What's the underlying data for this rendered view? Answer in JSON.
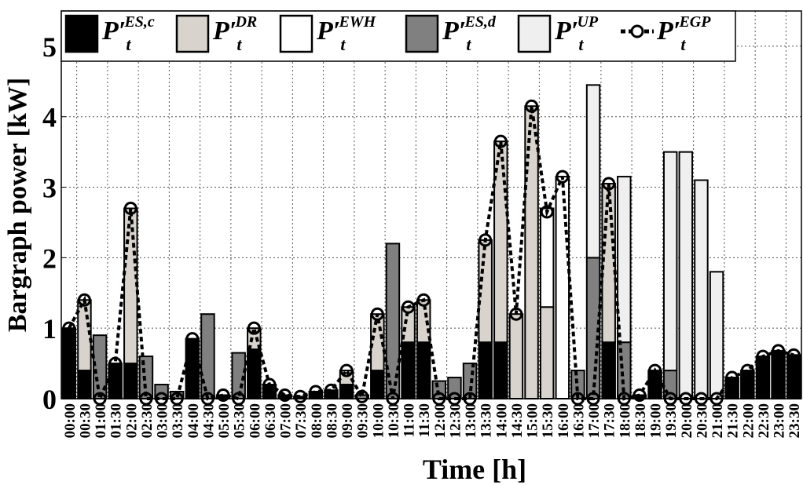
{
  "chart_data": {
    "type": "bar",
    "stacked": true,
    "xlabel": "Time [h]",
    "ylabel": "Bargraph power [kW]",
    "categories": [
      "00:00",
      "00:30",
      "01:00",
      "01:30",
      "02:00",
      "02:30",
      "03:00",
      "03:30",
      "04:00",
      "04:30",
      "05:00",
      "05:30",
      "06:00",
      "06:30",
      "07:00",
      "07:30",
      "08:00",
      "08:30",
      "09:00",
      "09:30",
      "10:00",
      "10:30",
      "11:00",
      "11:30",
      "12:00",
      "12:30",
      "13:00",
      "13:30",
      "14:00",
      "14:30",
      "15:00",
      "15:30",
      "16:00",
      "16:30",
      "17:00",
      "17:30",
      "18:00",
      "18:30",
      "19:00",
      "19:30",
      "20:00",
      "20:30",
      "21:00",
      "21:30",
      "22:00",
      "22:30",
      "23:00",
      "23:30"
    ],
    "series": [
      {
        "name": "P′_t^{ES,c}",
        "color": "#000000",
        "values": [
          1.0,
          0.4,
          0,
          0.5,
          0.5,
          0,
          0,
          0,
          0.85,
          0,
          0.05,
          0,
          0.7,
          0.2,
          0.05,
          0.03,
          0.1,
          0.12,
          0.2,
          0,
          0.4,
          0,
          0.8,
          0.8,
          0,
          0,
          0,
          0.8,
          0.8,
          0,
          0,
          0,
          0,
          0,
          0,
          0.8,
          0,
          0.05,
          0.4,
          0,
          0,
          0,
          0,
          0.3,
          0.4,
          0.6,
          0.68,
          0.62
        ]
      },
      {
        "name": "P′_t^{DR}",
        "color": "#d8d3cc",
        "values": [
          0,
          1.0,
          0,
          0,
          2.2,
          0,
          0,
          0,
          0,
          0,
          0,
          0,
          0.3,
          0,
          0,
          0,
          0,
          0,
          0.2,
          0,
          0.8,
          0,
          0.5,
          0.6,
          0,
          0,
          0,
          1.45,
          2.85,
          1.2,
          4.15,
          1.3,
          0,
          0,
          0,
          2.25,
          0,
          0,
          0,
          0,
          0,
          0,
          0,
          0,
          0,
          0,
          0,
          0
        ]
      },
      {
        "name": "P′_t^{EWH}",
        "color": "#ffffff",
        "values": [
          0,
          0,
          0,
          0,
          0,
          0,
          0,
          0,
          0,
          0,
          0,
          0,
          0,
          0,
          0,
          0,
          0,
          0,
          0,
          0,
          0,
          0,
          0,
          0,
          0,
          0,
          0,
          0,
          0,
          0,
          0,
          1.4,
          3.15,
          0,
          0,
          0,
          0,
          0,
          0,
          0,
          0,
          0,
          0,
          0,
          0,
          0,
          0,
          0
        ]
      },
      {
        "name": "P′_t^{ES,d}",
        "color": "#808080",
        "values": [
          0,
          0,
          0.9,
          0,
          0,
          0.6,
          0.2,
          0.1,
          0,
          1.2,
          0,
          0.65,
          0,
          0,
          0,
          0,
          0,
          0,
          0,
          0.05,
          0,
          2.2,
          0,
          0,
          0.25,
          0.3,
          0.5,
          0,
          0,
          0,
          0,
          0,
          0,
          0.4,
          2.0,
          0,
          0.8,
          0,
          0,
          0.4,
          0,
          0,
          0,
          0,
          0,
          0,
          0,
          0
        ]
      },
      {
        "name": "P′_t^{UP}",
        "color": "#efefef",
        "values": [
          0,
          0,
          0,
          0,
          0,
          0,
          0,
          0,
          0,
          0,
          0,
          0,
          0,
          0,
          0,
          0,
          0,
          0,
          0,
          0,
          0,
          0,
          0,
          0,
          0,
          0,
          0,
          0,
          0,
          0,
          0,
          0,
          0,
          0,
          2.45,
          0,
          2.35,
          0,
          0,
          3.1,
          3.5,
          3.1,
          1.8,
          0,
          0,
          0,
          0,
          0
        ]
      },
      {
        "name": "P′_t^{EGP}",
        "color": "#000000",
        "type": "line",
        "values": [
          1.0,
          1.4,
          0,
          0.5,
          2.7,
          0,
          0,
          0,
          0.85,
          0,
          0.05,
          0,
          1.0,
          0.2,
          0.05,
          0.03,
          0.1,
          0.12,
          0.4,
          0.03,
          1.2,
          0,
          1.3,
          1.4,
          0,
          0,
          0,
          2.25,
          3.65,
          1.2,
          4.15,
          2.65,
          3.15,
          0,
          0,
          3.05,
          0,
          0.05,
          0.4,
          0,
          0,
          0,
          0,
          0.3,
          0.4,
          0.6,
          0.68,
          0.62
        ]
      }
    ],
    "ylim": [
      0,
      5.5
    ],
    "yticks": [
      0,
      1,
      2,
      3,
      4,
      5
    ],
    "grid": true
  }
}
